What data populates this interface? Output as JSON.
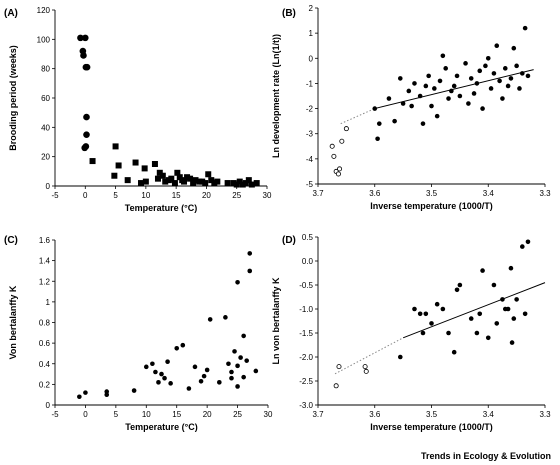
{
  "credit": "Trends in Ecology & Evolution",
  "chart_data": [
    {
      "panel": "(A)",
      "type": "scatter",
      "xlabel": "Temperature (°C)",
      "ylabel": "Brooding period (weeks)",
      "xlim": [
        -5,
        30
      ],
      "ylim": [
        0,
        120
      ],
      "xticks": [
        -5,
        0,
        5,
        10,
        15,
        20,
        25,
        30
      ],
      "yticks": [
        0,
        20,
        40,
        60,
        80,
        100,
        120
      ],
      "series": [
        {
          "marker": "circle-filled",
          "x": [
            -0.8,
            -0.4,
            0,
            -0.3,
            0.1,
            0.3,
            0.2,
            0.2,
            0.1,
            -0.1
          ],
          "y": [
            101,
            92,
            101,
            89,
            81,
            81,
            47,
            35,
            27,
            26
          ]
        },
        {
          "marker": "square-filled",
          "x": [
            1.2,
            4.8,
            5,
            5.5,
            7,
            8.3,
            9.2,
            9.8,
            10,
            11.5,
            12,
            12.3,
            12.8,
            13.2,
            13.8,
            14.2,
            14.8,
            15.2,
            15.6,
            16,
            16.3,
            16.8,
            17.3,
            17.8,
            18.2,
            18.8,
            19.3,
            19.8,
            20.3,
            20.8,
            21.3,
            21.8,
            23.5,
            24.5,
            25,
            25.5,
            26,
            26.5,
            27,
            27.5,
            28.3
          ],
          "y": [
            17,
            7,
            27,
            14,
            4,
            16,
            2,
            12,
            3,
            15,
            5,
            9,
            7,
            3,
            4,
            5,
            2,
            9,
            6,
            4,
            3,
            6,
            5,
            2,
            4,
            3,
            3,
            2,
            8,
            4,
            2,
            3,
            2,
            2,
            1,
            3,
            1,
            2,
            4,
            1,
            2
          ]
        }
      ]
    },
    {
      "panel": "(B)",
      "type": "scatter",
      "xlabel": "Inverse temperature (1000/T)",
      "ylabel": "Ln development rate (Ln(1/t))",
      "xlim": [
        3.7,
        3.3
      ],
      "ylim": [
        -5,
        2
      ],
      "xticks": [
        3.7,
        3.6,
        3.5,
        3.4,
        3.3
      ],
      "xtick_labels": [
        "3.7",
        "3.6",
        "3.5",
        "3.4",
        "3.3"
      ],
      "yticks": [
        -5,
        -4,
        -3,
        -2,
        -1,
        0,
        1,
        2
      ],
      "series": [
        {
          "marker": "circle-open",
          "x": [
            3.675,
            3.672,
            3.668,
            3.664,
            3.662,
            3.658,
            3.65
          ],
          "y": [
            -3.5,
            -3.9,
            -4.5,
            -4.6,
            -4.4,
            -3.3,
            -2.8
          ]
        },
        {
          "marker": "circle-filled",
          "x": [
            3.6,
            3.595,
            3.592,
            3.575,
            3.565,
            3.555,
            3.55,
            3.54,
            3.535,
            3.53,
            3.52,
            3.515,
            3.51,
            3.505,
            3.5,
            3.495,
            3.49,
            3.485,
            3.48,
            3.475,
            3.47,
            3.465,
            3.46,
            3.455,
            3.45,
            3.44,
            3.435,
            3.43,
            3.425,
            3.42,
            3.415,
            3.41,
            3.405,
            3.4,
            3.395,
            3.39,
            3.385,
            3.38,
            3.375,
            3.37,
            3.365,
            3.36,
            3.355,
            3.35,
            3.345,
            3.34,
            3.335,
            3.33
          ],
          "y": [
            -2.0,
            -3.2,
            -2.6,
            -1.6,
            -2.5,
            -0.8,
            -1.8,
            -1.3,
            -1.9,
            -1.0,
            -1.5,
            -2.6,
            -1.1,
            -0.7,
            -1.9,
            -1.2,
            -2.3,
            -0.9,
            0.1,
            -0.4,
            -1.6,
            -1.3,
            -1.1,
            -0.7,
            -1.5,
            -0.2,
            -1.8,
            -0.8,
            -1.4,
            -1.0,
            -0.5,
            -2.0,
            -0.3,
            0.0,
            -1.2,
            -0.6,
            0.5,
            -0.9,
            -1.6,
            -0.4,
            -1.1,
            -0.8,
            0.4,
            -0.3,
            -1.2,
            -0.6,
            1.2,
            -0.7
          ]
        }
      ],
      "fit_line": {
        "solid": [
          [
            3.6,
            -2.0
          ],
          [
            3.32,
            -0.45
          ]
        ],
        "dotted": [
          [
            3.66,
            -2.6
          ],
          [
            3.6,
            -2.0
          ]
        ]
      }
    },
    {
      "panel": "(C)",
      "type": "scatter",
      "xlabel": "Temperature (°C)",
      "ylabel": "Von bertalanffy K",
      "xlim": [
        -5,
        30
      ],
      "ylim": [
        0,
        1.6
      ],
      "xticks": [
        -5,
        0,
        5,
        10,
        15,
        20,
        25,
        30
      ],
      "yticks": [
        0,
        0.2,
        0.4,
        0.6,
        0.8,
        1.0,
        1.2,
        1.4,
        1.6
      ],
      "ytick_labels": [
        "0",
        "0.2",
        "0.4",
        "0.6",
        "0.8",
        "1",
        "1.2",
        "1.4",
        "1.6"
      ],
      "series": [
        {
          "marker": "circle-filled",
          "x": [
            -1,
            0,
            3.5,
            3.5,
            8,
            10,
            11,
            11.5,
            12,
            12.5,
            13,
            13.5,
            14,
            15,
            16,
            17,
            18,
            19,
            19.5,
            20,
            20.5,
            22,
            23,
            23.5,
            24,
            24,
            24.5,
            25,
            25,
            25,
            25.5,
            26,
            26,
            26.5,
            27,
            27,
            28
          ],
          "y": [
            0.08,
            0.12,
            0.1,
            0.13,
            0.14,
            0.37,
            0.4,
            0.32,
            0.22,
            0.3,
            0.26,
            0.42,
            0.21,
            0.55,
            0.58,
            0.16,
            0.37,
            0.23,
            0.28,
            0.34,
            0.83,
            0.22,
            0.85,
            0.4,
            0.26,
            0.32,
            0.52,
            1.19,
            0.38,
            0.18,
            0.46,
            0.67,
            0.27,
            0.43,
            1.3,
            1.47,
            0.33
          ]
        }
      ]
    },
    {
      "panel": "(D)",
      "type": "scatter",
      "xlabel": "Inverse temperature (1000/T)",
      "ylabel": "Ln von bertalanffy K",
      "xlim": [
        3.7,
        3.3
      ],
      "ylim": [
        -3,
        0.5
      ],
      "xticks": [
        3.7,
        3.6,
        3.5,
        3.4,
        3.3
      ],
      "xtick_labels": [
        "3.7",
        "3.6",
        "3.5",
        "3.4",
        "3.3"
      ],
      "yticks": [
        -3,
        -2.5,
        -2,
        -1.5,
        -1,
        -0.5,
        0,
        0.5
      ],
      "ytick_labels": [
        "-3.0",
        "-2.5",
        "-2.0",
        "-1.5",
        "-1.0",
        "-0.5",
        "0.0",
        "0.5"
      ],
      "series": [
        {
          "marker": "circle-open",
          "x": [
            3.668,
            3.663,
            3.617,
            3.615
          ],
          "y": [
            -2.6,
            -2.2,
            -2.2,
            -2.3
          ]
        },
        {
          "marker": "circle-filled",
          "x": [
            3.555,
            3.53,
            3.52,
            3.515,
            3.51,
            3.5,
            3.49,
            3.48,
            3.47,
            3.46,
            3.455,
            3.45,
            3.43,
            3.42,
            3.415,
            3.41,
            3.4,
            3.39,
            3.385,
            3.375,
            3.37,
            3.365,
            3.36,
            3.358,
            3.355,
            3.35,
            3.34,
            3.335,
            3.33
          ],
          "y": [
            -2.0,
            -1.0,
            -1.1,
            -1.5,
            -1.1,
            -1.3,
            -0.9,
            -1.0,
            -1.5,
            -1.9,
            -0.6,
            -0.5,
            -1.2,
            -1.5,
            -1.1,
            -0.2,
            -1.6,
            -0.5,
            -1.3,
            -0.8,
            -1.0,
            -1.0,
            -0.15,
            -1.7,
            -1.2,
            -0.8,
            0.3,
            -1.1,
            0.4
          ]
        }
      ],
      "fit_line": {
        "solid": [
          [
            3.55,
            -1.6
          ],
          [
            3.3,
            -0.45
          ]
        ],
        "dotted": [
          [
            3.67,
            -2.35
          ],
          [
            3.55,
            -1.6
          ]
        ]
      }
    }
  ]
}
